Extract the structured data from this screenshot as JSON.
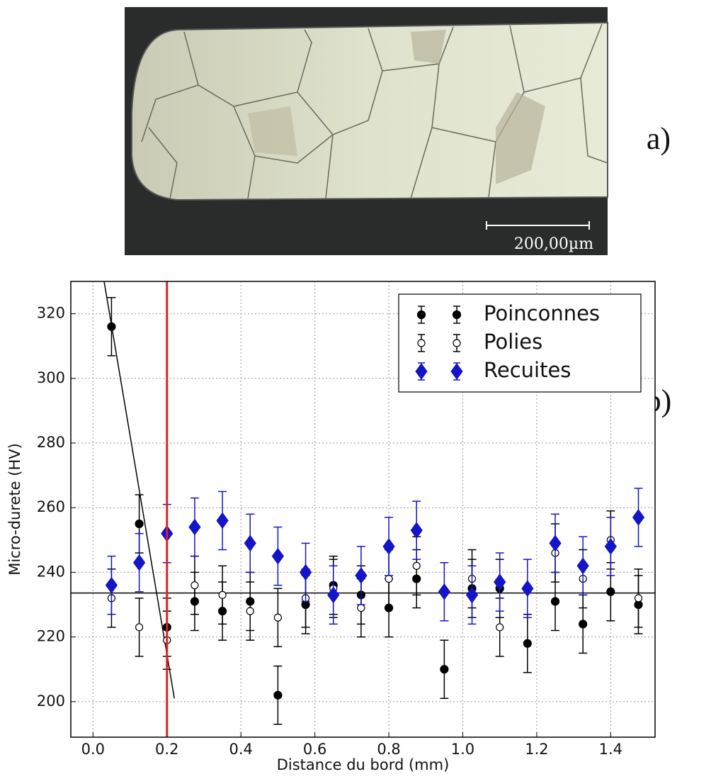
{
  "figure": {
    "label_a": "a)",
    "label_b": "b)",
    "scale_bar": "200,00µm"
  },
  "chart_data": {
    "type": "scatter",
    "xlabel": "Distance du bord  (mm)",
    "ylabel": "Micro-durete (HV)",
    "xlim": [
      -0.06,
      1.52
    ],
    "ylim": [
      189,
      330
    ],
    "xticks": [
      {
        "value": 0,
        "label": "0.0"
      },
      0.2,
      0.4,
      0.6,
      0.8,
      {
        "value": 1,
        "label": "1.0"
      },
      1.2,
      1.4
    ],
    "yticks": [
      200,
      220,
      240,
      260,
      280,
      300,
      320
    ],
    "grid": true,
    "legend": "upper right",
    "x": [
      0.05,
      0.125,
      0.2,
      0.275,
      0.35,
      0.425,
      0.5,
      0.575,
      0.65,
      0.725,
      0.8,
      0.875,
      0.95,
      1.025,
      1.1,
      1.175,
      1.25,
      1.325,
      1.4,
      1.475
    ],
    "series": [
      {
        "name": "Poinconnes",
        "color": "#000000",
        "marker": "circle",
        "values": [
          316,
          255,
          223,
          231,
          228,
          231,
          202,
          230,
          236,
          233,
          229,
          238,
          210,
          235,
          235,
          218,
          231,
          224,
          234,
          230
        ],
        "errors": [
          9,
          9,
          9,
          9,
          9,
          9,
          9,
          9,
          9,
          9,
          9,
          9,
          9,
          9,
          9,
          9,
          9,
          9,
          9,
          9
        ]
      },
      {
        "name": "Polies",
        "color": "#000000",
        "marker": "circle-open",
        "values": [
          232,
          223,
          219,
          236,
          233,
          228,
          226,
          232,
          235,
          229,
          238,
          242,
          null,
          238,
          223,
          null,
          246,
          238,
          250,
          232
        ],
        "errors": [
          9,
          9,
          9,
          9,
          9,
          9,
          9,
          9,
          9,
          9,
          9,
          9,
          null,
          9,
          9,
          null,
          9,
          9,
          9,
          9
        ]
      },
      {
        "name": "Recuites",
        "color": "#1414c8",
        "marker": "diamond",
        "values": [
          236,
          243,
          252,
          254,
          256,
          249,
          245,
          240,
          233,
          239,
          248,
          253,
          234,
          233,
          237,
          235,
          249,
          242,
          248,
          257
        ],
        "errors": [
          9,
          9,
          9,
          9,
          9,
          9,
          9,
          9,
          9,
          9,
          9,
          9,
          9,
          9,
          9,
          9,
          9,
          9,
          9,
          9
        ]
      }
    ],
    "vline": {
      "x": 0.2,
      "color": "#e02020"
    },
    "hline": {
      "y": 233.6,
      "color": "#000000"
    },
    "fit_line": {
      "x": [
        0.03,
        0.22
      ],
      "y": [
        330,
        201
      ],
      "color": "#000000"
    }
  }
}
